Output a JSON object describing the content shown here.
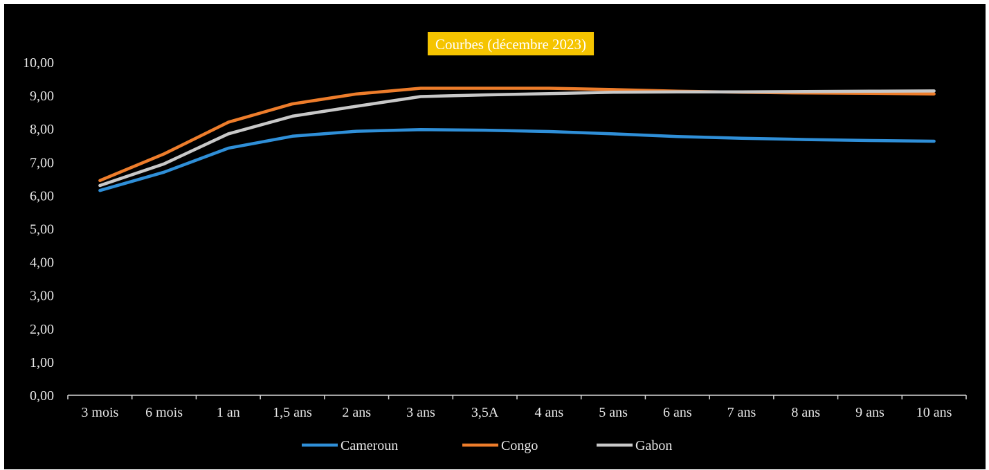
{
  "chart_data": {
    "type": "line",
    "title": "Courbes (décembre 2023)",
    "xlabel": "",
    "ylabel": "",
    "categories": [
      "3 mois",
      "6 mois",
      "1 an",
      "1,5 ans",
      "2 ans",
      "3 ans",
      "3,5A",
      "4 ans",
      "5 ans",
      "6 ans",
      "7 ans",
      "8 ans",
      "9 ans",
      "10 ans"
    ],
    "yticks": [
      "0,00",
      "1,00",
      "2,00",
      "3,00",
      "4,00",
      "5,00",
      "6,00",
      "7,00",
      "8,00",
      "9,00",
      "10,00"
    ],
    "ylim": [
      0,
      10
    ],
    "grid": false,
    "legend_position": "bottom",
    "series": [
      {
        "name": "Cameroun",
        "color": "#2f8fd8",
        "values": [
          6.15,
          6.7,
          7.42,
          7.78,
          7.93,
          7.98,
          7.96,
          7.92,
          7.85,
          7.77,
          7.72,
          7.68,
          7.65,
          7.63
        ]
      },
      {
        "name": "Congo",
        "color": "#ee7d2b",
        "values": [
          6.45,
          7.25,
          8.2,
          8.75,
          9.05,
          9.22,
          9.22,
          9.22,
          9.18,
          9.13,
          9.1,
          9.08,
          9.07,
          9.05
        ]
      },
      {
        "name": "Gabon",
        "color": "#c8c8c8",
        "values": [
          6.3,
          6.95,
          7.85,
          8.38,
          8.68,
          8.97,
          9.02,
          9.06,
          9.1,
          9.11,
          9.11,
          9.12,
          9.13,
          9.14
        ]
      }
    ],
    "title_background": "#f5c400",
    "background": "#000000",
    "axis_color": "#d8d8d8"
  }
}
